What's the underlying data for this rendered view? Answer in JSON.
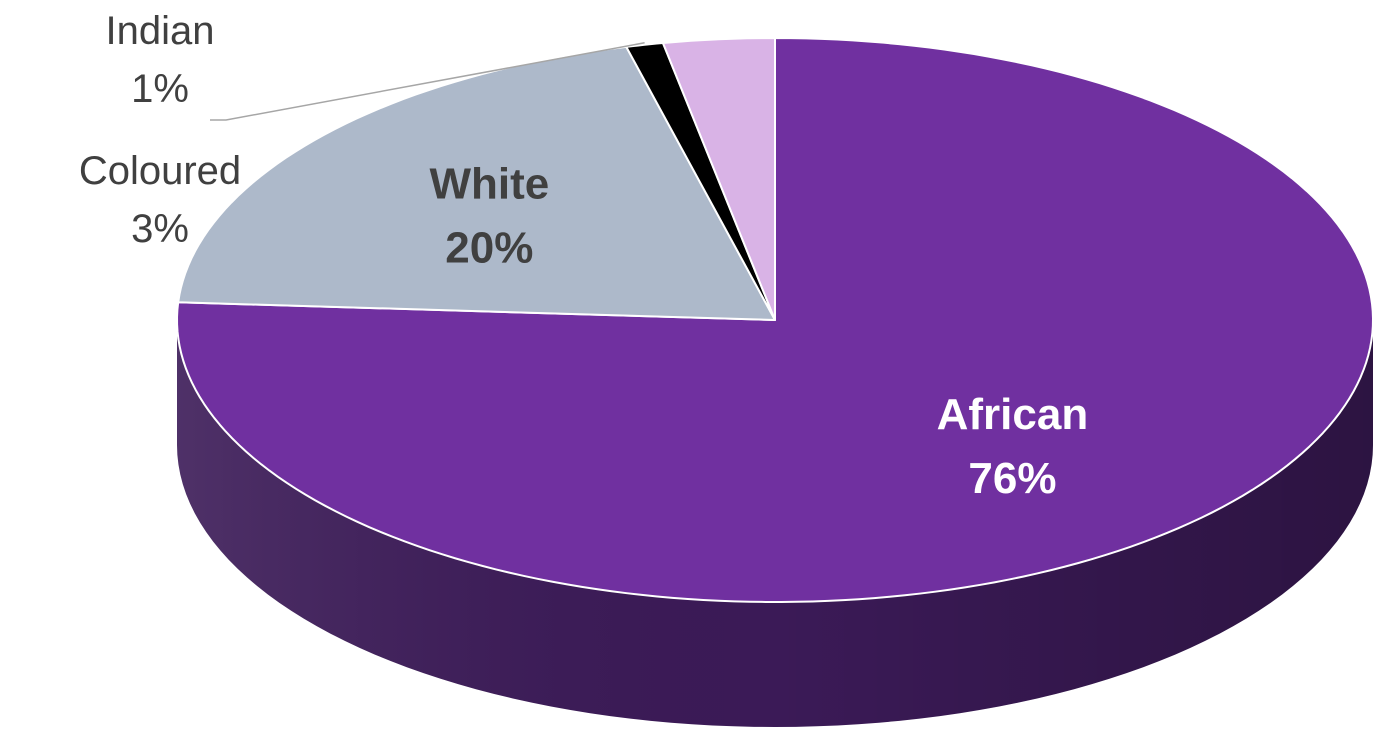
{
  "chart_data": {
    "type": "pie",
    "style": "3d",
    "categories": [
      "African",
      "White",
      "Indian",
      "Coloured"
    ],
    "values": [
      76,
      20,
      1,
      3
    ],
    "data_labels": [
      "76%",
      "20%",
      "1%",
      "3%"
    ],
    "colors": [
      "#7030a0",
      "#adb9ca",
      "#000000",
      "#d9b3e6"
    ],
    "side_colors": [
      "#3b1a57",
      "#7f8897",
      "#000000",
      "#9b7fa6"
    ],
    "label_colors": [
      "#ffffff",
      "#404040",
      "#404040",
      "#404040"
    ],
    "title": "",
    "legend": "none",
    "start_angle_deg": 90,
    "direction": "clockwise"
  }
}
